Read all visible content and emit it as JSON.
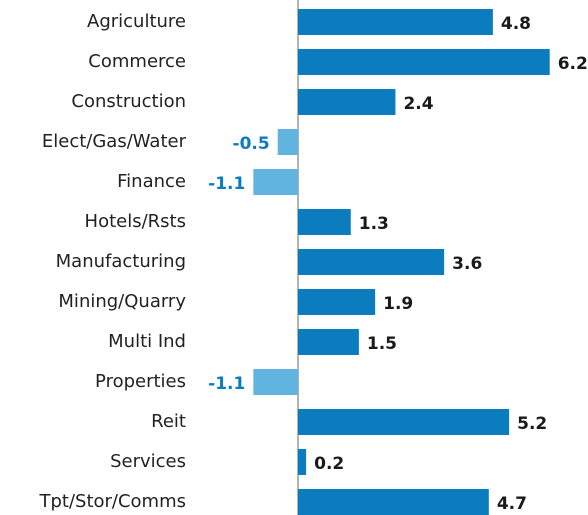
{
  "chart_data": {
    "type": "bar",
    "orientation": "horizontal",
    "categories": [
      "Agriculture",
      "Commerce",
      "Construction",
      "Elect/Gas/Water",
      "Finance",
      "Hotels/Rsts",
      "Manufacturing",
      "Mining/Quarry",
      "Multi Ind",
      "Properties",
      "Reit",
      "Services",
      "Tpt/Stor/Comms"
    ],
    "values": [
      4.8,
      6.2,
      2.4,
      -0.5,
      -1.1,
      1.3,
      3.6,
      1.9,
      1.5,
      -1.1,
      5.2,
      0.2,
      4.7
    ],
    "color": "#0b7dbe",
    "negative_color": "#62b4e0"
  }
}
